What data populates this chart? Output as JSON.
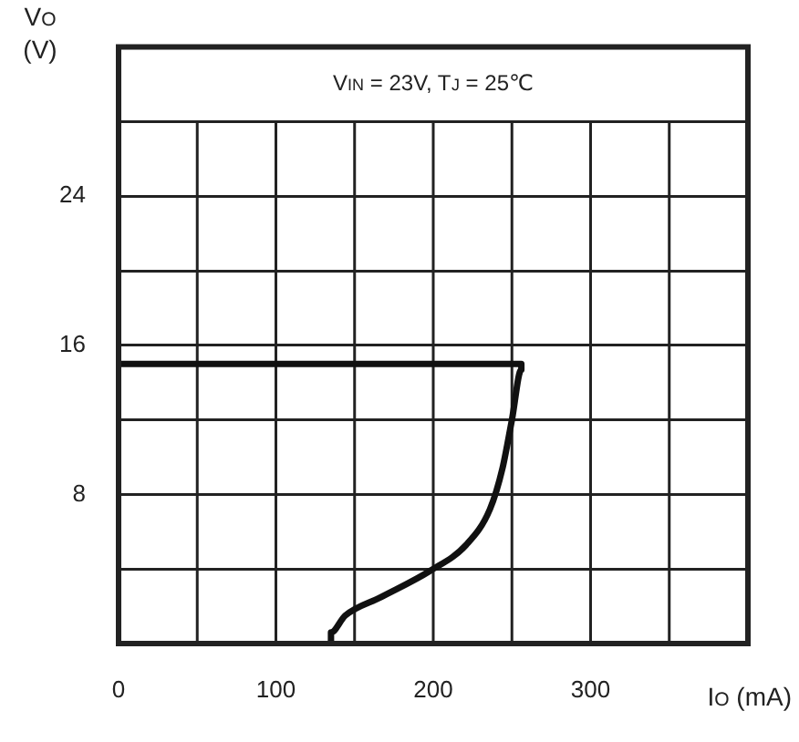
{
  "chart_data": {
    "type": "line",
    "xlabel": "I$_{O}$ (mA)",
    "ylabel": "V$_{O}$ (V)",
    "annotations": [
      "V$_{IN}$ = 23V, T$_{J}$ = 25℃"
    ],
    "series": [
      {
        "color": "#111111",
        "x": [
          0,
          120,
          200,
          256,
          256,
          250,
          244,
          236,
          221,
          198,
          167,
          144,
          135,
          135
        ],
        "values": [
          15,
          15,
          15,
          15,
          14.7,
          12,
          9.4,
          7.2,
          5.3,
          3.9,
          2.5,
          1.5,
          0.6,
          0
        ]
      }
    ],
    "xlim": [
      0,
      400
    ],
    "xticks": [
      0,
      {
        "value": 50,
        "label": null
      },
      100,
      {
        "value": 150,
        "label": null
      },
      200,
      {
        "value": 250,
        "label": null
      },
      300,
      {
        "value": 350,
        "label": null
      },
      {
        "value": 400,
        "label": null
      }
    ],
    "ylim": [
      0,
      32
    ],
    "yticks": [
      {
        "value": 0,
        "label": null
      },
      {
        "value": 4,
        "label": null
      },
      8,
      {
        "value": 12,
        "label": null
      },
      16,
      {
        "value": 20,
        "label": null
      },
      24,
      {
        "value": 28,
        "label": null
      },
      {
        "value": 32,
        "label": null
      }
    ],
    "grid": true,
    "legend": false,
    "marker": "none",
    "line_style": "solid"
  }
}
